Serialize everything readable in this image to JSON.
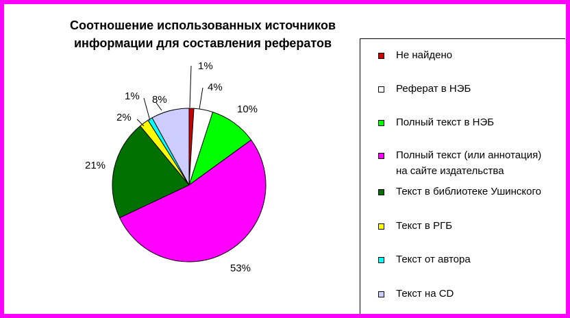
{
  "chart_data": {
    "type": "pie",
    "title": "Соотношение использованных источников информации для составления рефератов",
    "series": [
      {
        "name": "Не найдено",
        "value": 1,
        "label": "1%",
        "color": "#cc0000"
      },
      {
        "name": "Реферат в НЭБ",
        "value": 4,
        "label": "4%",
        "color": "#ffffff"
      },
      {
        "name": "Полный текст в НЭБ",
        "value": 10,
        "label": "10%",
        "color": "#00ff00"
      },
      {
        "name": "Полный текст (или аннотация) на сайте издательства",
        "value": 53,
        "label": "53%",
        "color": "#ff00ff"
      },
      {
        "name": "Текст в библиотеке Ушинского",
        "value": 21,
        "label": "21%",
        "color": "#007000"
      },
      {
        "name": "Текст в РГБ",
        "value": 2,
        "label": "2%",
        "color": "#ffff00"
      },
      {
        "name": "Текст от автора",
        "value": 1,
        "label": "1%",
        "color": "#00ffff"
      },
      {
        "name": "Текст на CD",
        "value": 8,
        "label": "8%",
        "color": "#ccccff"
      }
    ],
    "legend_position": "right"
  },
  "legend": {
    "items": [
      {
        "line1": "Не найдено",
        "line2": ""
      },
      {
        "line1": "Реферат в НЭБ",
        "line2": ""
      },
      {
        "line1": "Полный текст в НЭБ",
        "line2": ""
      },
      {
        "line1": "Полный текст (или аннотация)",
        "line2": "на сайте издательства"
      },
      {
        "line1": "Текст в библиотеке Ушинского",
        "line2": ""
      },
      {
        "line1": "Текст в РГБ",
        "line2": ""
      },
      {
        "line1": "Текст от автора",
        "line2": ""
      },
      {
        "line1": "Текст на CD",
        "line2": ""
      }
    ]
  }
}
